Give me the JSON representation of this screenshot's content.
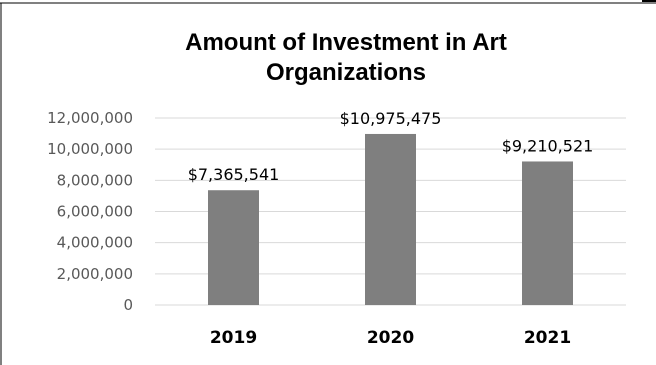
{
  "chart_data": {
    "type": "bar",
    "title": "Amount of Investment in Art Organizations",
    "title_lines": [
      "Amount of Investment in Art",
      "Organizations"
    ],
    "categories": [
      "2019",
      "2020",
      "2021"
    ],
    "values": [
      7365541,
      10975475,
      9210521
    ],
    "data_labels": [
      "$7,365,541",
      "$10,975,475",
      "$9,210,521"
    ],
    "xlabel": "",
    "ylabel": "",
    "ylim": [
      0,
      12000000
    ],
    "yticks": [
      0,
      2000000,
      4000000,
      6000000,
      8000000,
      10000000,
      12000000
    ],
    "ytick_labels": [
      "0",
      "2,000,000",
      "4,000,000",
      "6,000,000",
      "8,000,000",
      "10,000,000",
      "12,000,000"
    ],
    "grid": true,
    "legend": "none",
    "bar_color": "#7f7f7f",
    "grid_color": "#d9d9d9"
  }
}
